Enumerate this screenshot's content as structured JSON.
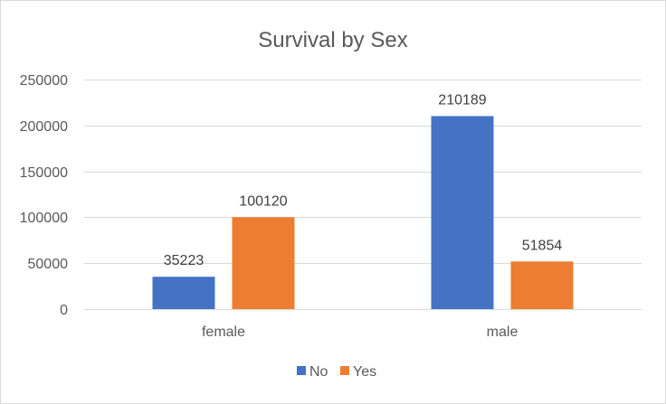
{
  "chart_data": {
    "type": "bar",
    "title": "Survival by Sex",
    "xlabel": "",
    "ylabel": "",
    "categories": [
      "female",
      "male"
    ],
    "series": [
      {
        "name": "No",
        "values": [
          35223,
          210189
        ],
        "color": "#4472c4"
      },
      {
        "name": "Yes",
        "values": [
          100120,
          51854
        ],
        "color": "#ed7d31"
      }
    ],
    "ylim": [
      0,
      250000
    ],
    "yticks": [
      0,
      50000,
      100000,
      150000,
      200000,
      250000
    ],
    "grid": true,
    "legend_position": "bottom"
  }
}
